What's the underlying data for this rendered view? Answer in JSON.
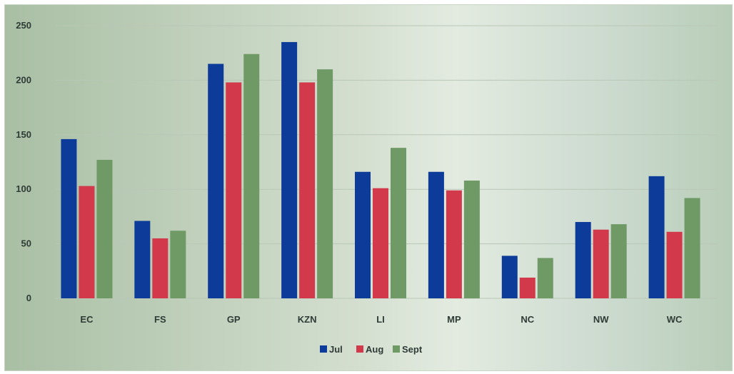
{
  "chart_data": {
    "type": "bar",
    "title": "",
    "xlabel": "",
    "ylabel": "",
    "categories": [
      "EC",
      "FS",
      "GP",
      "KZN",
      "LI",
      "MP",
      "NC",
      "NW",
      "WC"
    ],
    "series": [
      {
        "name": "Jul",
        "color": "#0d3b9a",
        "values": [
          146,
          71,
          215,
          235,
          116,
          116,
          39,
          70,
          112
        ]
      },
      {
        "name": "Aug",
        "color": "#d23a4c",
        "values": [
          103,
          55,
          198,
          198,
          101,
          99,
          19,
          63,
          61
        ]
      },
      {
        "name": "Sept",
        "color": "#6f9a66",
        "values": [
          127,
          62,
          224,
          210,
          138,
          108,
          37,
          68,
          92
        ]
      }
    ],
    "ylim": [
      0,
      250
    ],
    "yticks": [
      0,
      50,
      100,
      150,
      200,
      250
    ],
    "grid": true,
    "legend_position": "bottom"
  }
}
